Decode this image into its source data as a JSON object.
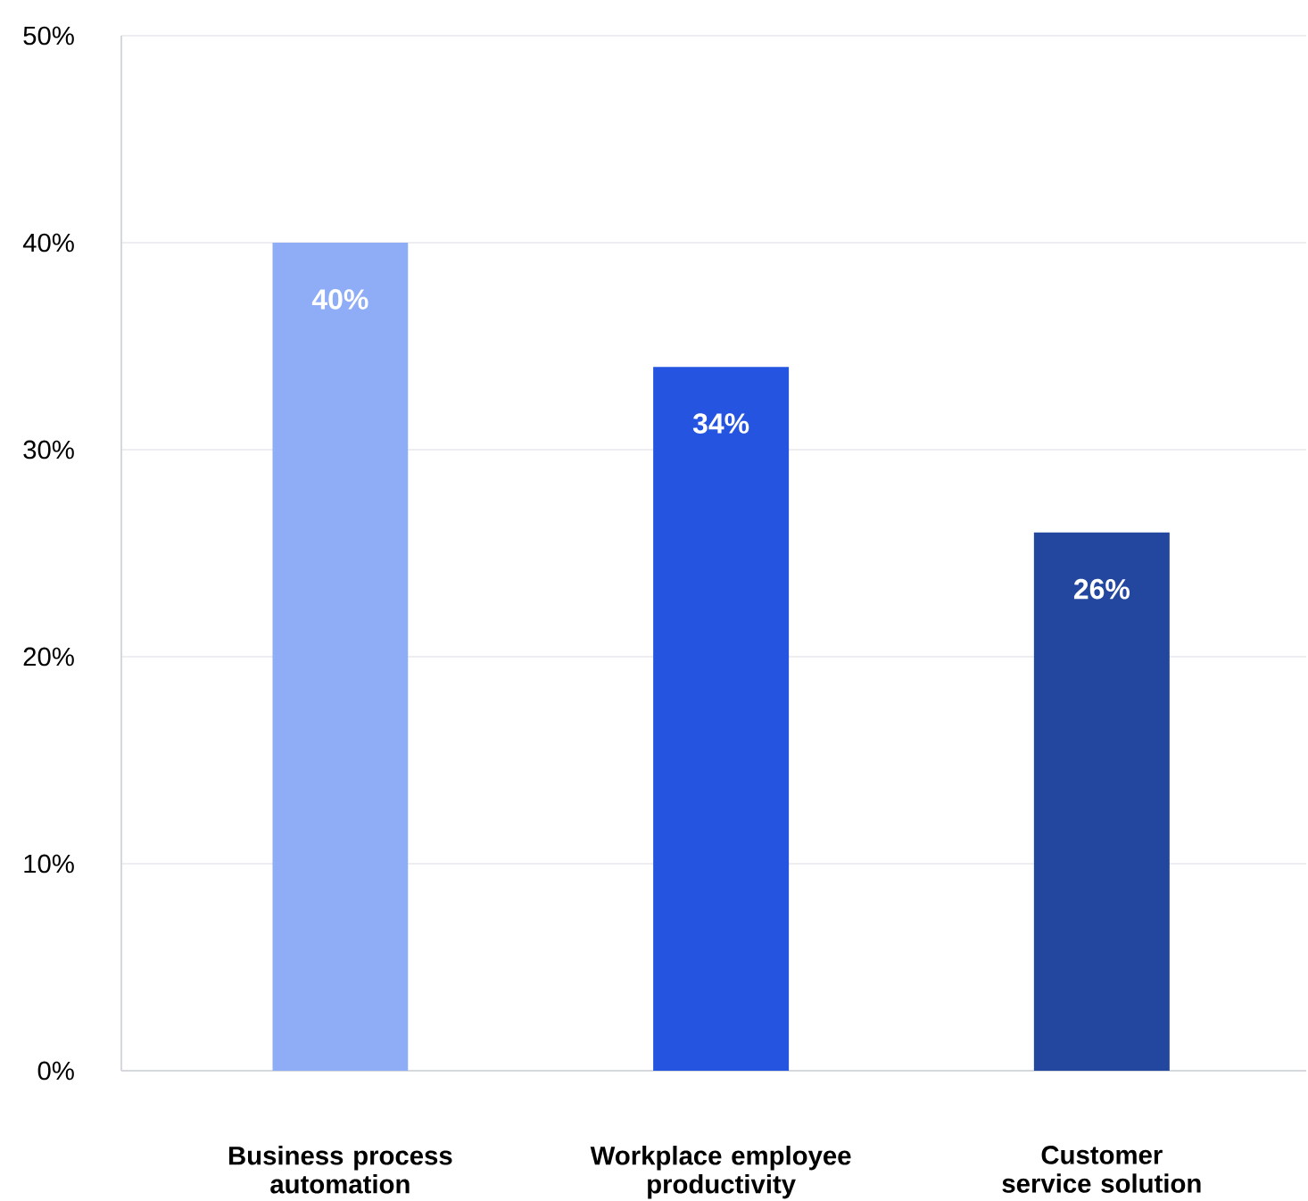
{
  "chart_data": {
    "type": "bar",
    "categories": [
      "Business process automation",
      "Workplace employee productivity",
      "Customer service solution"
    ],
    "values": [
      40,
      34,
      26
    ],
    "colors": [
      "#8fadf7",
      "#2554e0",
      "#23479f"
    ],
    "value_labels": [
      "40%",
      "34%",
      "26%"
    ],
    "ylim": [
      0,
      50
    ],
    "yticks": [
      {
        "value": 0,
        "label": "0%"
      },
      {
        "value": 10,
        "label": "10%"
      },
      {
        "value": 20,
        "label": "20%"
      },
      {
        "value": 30,
        "label": "30%"
      },
      {
        "value": 40,
        "label": "40%"
      },
      {
        "value": 50,
        "label": "50%"
      }
    ],
    "grid": "y"
  }
}
